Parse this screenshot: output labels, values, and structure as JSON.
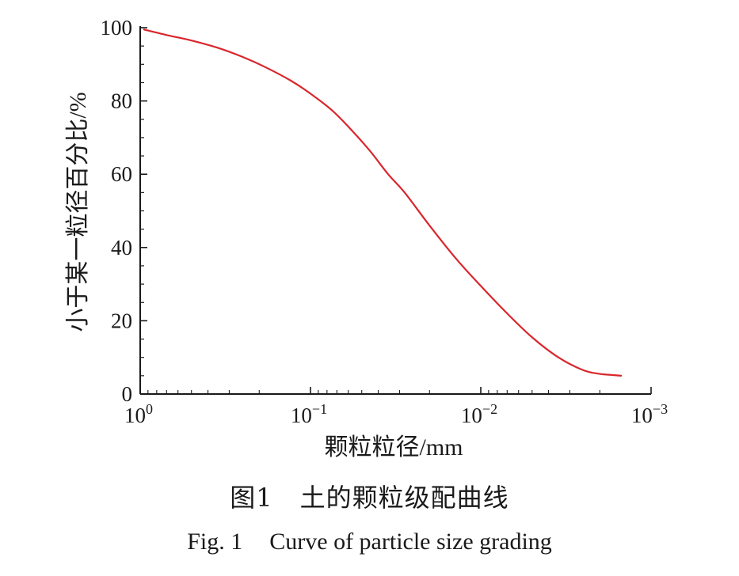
{
  "chart_data": {
    "type": "line",
    "xlabel": "颗粒粒径/mm",
    "ylabel": "小于某一粒径百分比/%",
    "x_scale": "log",
    "x_direction": "decreasing",
    "xlim": [
      1,
      0.001
    ],
    "ylim": [
      0,
      100
    ],
    "x_ticks": [
      {
        "mantissa": "10",
        "exponent": "0"
      },
      {
        "mantissa": "10",
        "exponent": "−1"
      },
      {
        "mantissa": "10",
        "exponent": "−2"
      },
      {
        "mantissa": "10",
        "exponent": "−3"
      }
    ],
    "y_ticks": [
      "0",
      "20",
      "40",
      "60",
      "80",
      "100"
    ],
    "y_tick_values": [
      0,
      20,
      40,
      60,
      80,
      100
    ],
    "line_color": "#d9262c",
    "grid": false,
    "series": [
      {
        "x": [
          0.95,
          0.7,
          0.5,
          0.35,
          0.25,
          0.18,
          0.13,
          0.1,
          0.075,
          0.06,
          0.045,
          0.035,
          0.028,
          0.02,
          0.014,
          0.01,
          0.007,
          0.005,
          0.0035,
          0.0025,
          0.002,
          0.0017,
          0.0015
        ],
        "y": [
          99.5,
          98.0,
          96.5,
          94.5,
          92.0,
          89.0,
          85.5,
          82.0,
          77.5,
          73.0,
          66.5,
          60.0,
          55.0,
          46.0,
          37.0,
          29.5,
          22.0,
          15.5,
          10.0,
          6.5,
          5.5,
          5.2,
          5.0
        ]
      }
    ]
  },
  "captions": {
    "cn_fig": "图1",
    "cn_title": "土的颗粒级配曲线",
    "en_fig": "Fig. 1",
    "en_title": "Curve of particle size grading"
  }
}
